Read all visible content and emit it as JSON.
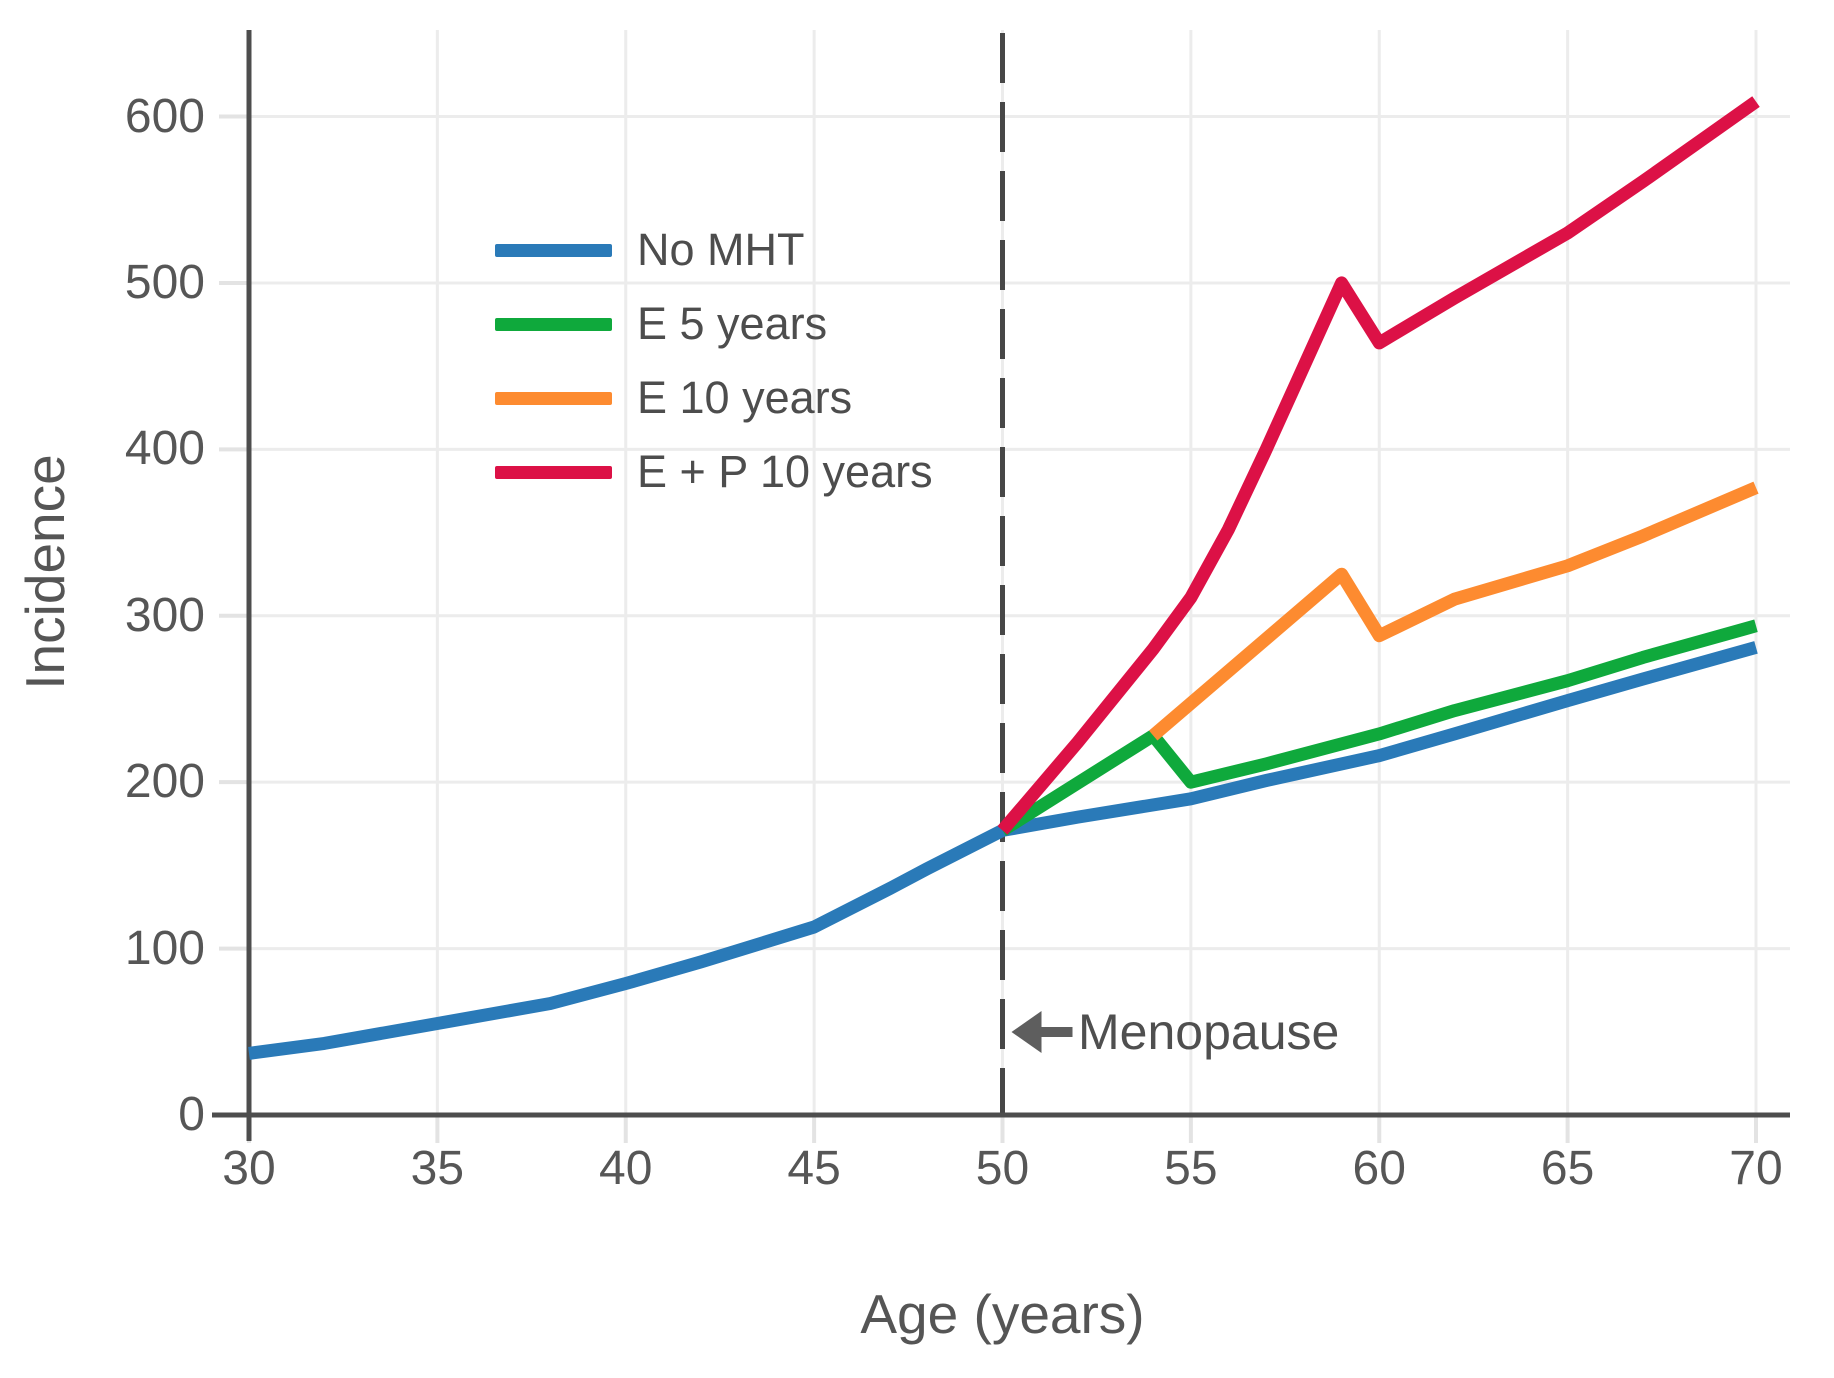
{
  "figure": {
    "background": "#ffffff"
  },
  "axis_style": {
    "spine_color": "#4d4d4d",
    "grid_color": "#ececec",
    "tick_color": "#e3e3e3",
    "tick_label_color": "#565656",
    "axis_label_color": "#555555",
    "annotation_color": "#4f4f4f",
    "arrow_color": "#5e5e5e",
    "dashed_line_color": "#474747"
  },
  "chart_data": {
    "type": "line",
    "title": "",
    "xlabel": "Age (years)",
    "ylabel": "Incidence",
    "xlim": [
      30,
      70
    ],
    "ylim": [
      0,
      652
    ],
    "x_ticks": [
      30,
      35,
      40,
      45,
      50,
      55,
      60,
      65,
      70
    ],
    "y_ticks": [
      0,
      100,
      200,
      300,
      400,
      500,
      600
    ],
    "grid": true,
    "legend_position": "upper left inside",
    "series": [
      {
        "name": "No MHT",
        "color": "#2a7ab8",
        "points": [
          [
            30,
            37
          ],
          [
            32,
            43
          ],
          [
            35,
            55
          ],
          [
            38,
            67
          ],
          [
            40,
            79
          ],
          [
            42,
            92
          ],
          [
            45,
            113
          ],
          [
            47,
            136
          ],
          [
            48,
            148
          ],
          [
            50,
            171
          ],
          [
            52,
            179
          ],
          [
            55,
            190
          ],
          [
            57,
            201
          ],
          [
            60,
            216
          ],
          [
            62,
            229
          ],
          [
            65,
            249
          ],
          [
            67,
            262
          ],
          [
            70,
            281
          ]
        ]
      },
      {
        "name": "E 5 years",
        "color": "#0fa93c",
        "points": [
          [
            50,
            171
          ],
          [
            54,
            228
          ],
          [
            55,
            200
          ],
          [
            57,
            211
          ],
          [
            60,
            229
          ],
          [
            62,
            243
          ],
          [
            65,
            261
          ],
          [
            67,
            275
          ],
          [
            70,
            294
          ]
        ]
      },
      {
        "name": "E 10 years",
        "color": "#fd8b30",
        "points": [
          [
            54,
            228
          ],
          [
            59,
            325
          ],
          [
            60,
            288
          ],
          [
            62,
            310
          ],
          [
            65,
            330
          ],
          [
            67,
            348
          ],
          [
            70,
            377
          ]
        ]
      },
      {
        "name": "E + P 10 years",
        "color": "#dc1146",
        "points": [
          [
            50,
            171
          ],
          [
            52,
            224
          ],
          [
            54,
            280
          ],
          [
            55,
            311
          ],
          [
            56,
            352
          ],
          [
            57,
            400
          ],
          [
            58,
            450
          ],
          [
            59,
            500
          ],
          [
            60,
            464
          ],
          [
            62,
            491
          ],
          [
            65,
            530
          ],
          [
            67,
            561
          ],
          [
            70,
            609
          ]
        ]
      }
    ],
    "annotations": [
      {
        "type": "vline",
        "x": 50,
        "style": "dashed"
      },
      {
        "type": "arrow-label",
        "label": "Menopause",
        "x": 50,
        "y": 50,
        "direction": "left"
      }
    ]
  }
}
